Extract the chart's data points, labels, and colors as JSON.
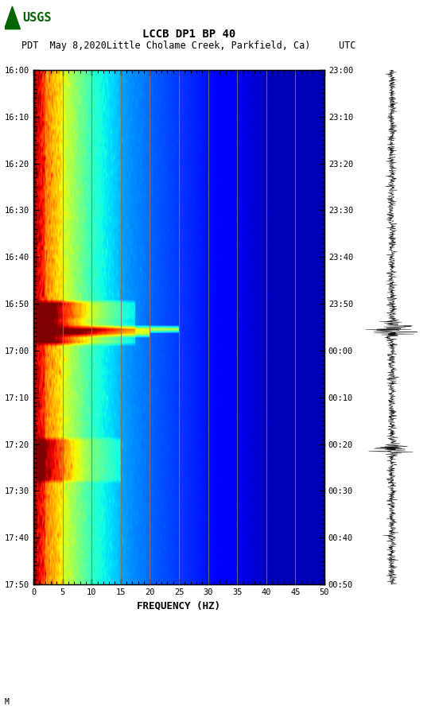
{
  "title_line1": "LCCB DP1 BP 40",
  "title_line2": "PDT  May 8,2020Little Cholame Creek, Parkfield, Ca)     UTC",
  "left_times": [
    "16:00",
    "16:10",
    "16:20",
    "16:30",
    "16:40",
    "16:50",
    "17:00",
    "17:10",
    "17:20",
    "17:30",
    "17:40",
    "17:50"
  ],
  "right_times": [
    "23:00",
    "23:10",
    "23:20",
    "23:30",
    "23:40",
    "23:50",
    "00:00",
    "00:10",
    "00:20",
    "00:30",
    "00:40",
    "00:50"
  ],
  "freq_ticks": [
    0,
    5,
    10,
    15,
    20,
    25,
    30,
    35,
    40,
    45,
    50
  ],
  "freq_label": "FREQUENCY (HZ)",
  "vertical_lines_freq": [
    5,
    10,
    15,
    20,
    25,
    30,
    35,
    40,
    45
  ],
  "grid_line_color": "#8B7355",
  "n_time_steps": 120,
  "n_freq_steps": 300,
  "seed": 12345
}
